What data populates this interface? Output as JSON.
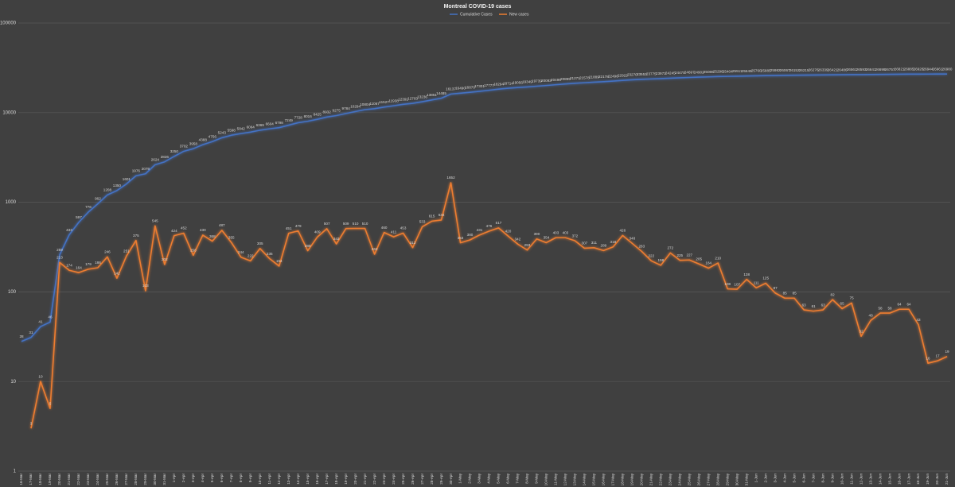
{
  "chart_data": {
    "type": "line",
    "title": "Montreal COVID-19 cases",
    "log_scale": true,
    "grid": true,
    "legend": "top",
    "categories": [
      "16-Mar",
      "17-Mar",
      "18-Mar",
      "19-Mar",
      "20-Mar",
      "21-Mar",
      "22-Mar",
      "23-Mar",
      "24-Mar",
      "25-Mar",
      "26-Mar",
      "27-Mar",
      "28-Mar",
      "29-Mar",
      "30-Mar",
      "31-Mar",
      "1-Apr",
      "2-Apr",
      "3-Apr",
      "4-Apr",
      "5-Apr",
      "6-Apr",
      "7-Apr",
      "8-Apr",
      "9-Apr",
      "10-Apr",
      "11-Apr",
      "12-Apr",
      "13-Apr",
      "14-Apr",
      "15-Apr",
      "16-Apr",
      "17-Apr",
      "18-Apr",
      "19-Apr",
      "20-Apr",
      "21-Apr",
      "22-Apr",
      "23-Apr",
      "24-Apr",
      "25-Apr",
      "26-Apr",
      "27-Apr",
      "28-Apr",
      "29-Apr",
      "30-Apr",
      "1-May",
      "2-May",
      "3-May",
      "4-May",
      "5-May",
      "6-May",
      "7-May",
      "8-May",
      "9-May",
      "10-May",
      "11-May",
      "12-May",
      "13-May",
      "14-May",
      "15-May",
      "16-May",
      "17-May",
      "18-May",
      "19-May",
      "20-May",
      "21-May",
      "22-May",
      "23-May",
      "24-May",
      "25-May",
      "26-May",
      "27-May",
      "28-May",
      "29-May",
      "30-May",
      "31-May",
      "1-Jun",
      "2-Jun",
      "3-Jun",
      "4-Jun",
      "5-Jun",
      "6-Jun",
      "7-Jun",
      "8-Jun",
      "9-Jun",
      "10-Jun",
      "11-Jun",
      "12-Jun",
      "13-Jun",
      "14-Jun",
      "15-Jun",
      "16-Jun",
      "17-Jun",
      "18-Jun",
      "19-Jun",
      "20-Jun",
      "21-Jun"
    ],
    "ylim": [
      1,
      100000
    ],
    "yticks": [
      1,
      10,
      100,
      1000,
      10000,
      100000
    ],
    "series": [
      {
        "name": "Cumulative Cases",
        "color": "#4472c4",
        "values": [
          28,
          31,
          41,
          46,
          259,
          433,
          597,
          776,
          962,
          1208,
          1350,
          1601,
          1976,
          2079,
          2624,
          2826,
          3250,
          3702,
          3958,
          4388,
          4756,
          5243,
          5598,
          5842,
          6064,
          6369,
          6604,
          6798,
          7249,
          7728,
          8016,
          8425,
          8932,
          9275,
          9784,
          10294,
          10804,
          11067,
          11527,
          11938,
          12391,
          12703,
          13236,
          13851,
          14485,
          16137,
          16490,
          16870,
          17301,
          17777,
          18294,
          18714,
          19056,
          19349,
          19739,
          20093,
          20496,
          20899,
          21271,
          21578,
          21889,
          22178,
          22496,
          22922,
          23270,
          23553,
          23775,
          23973,
          24245,
          24470,
          24697,
          24902,
          25086,
          25296,
          25404,
          25511,
          25649,
          25760,
          25885,
          25982,
          26067,
          26152,
          26215,
          26276,
          26339,
          26421,
          26486,
          26561,
          26593,
          26641,
          26699,
          26757,
          26821,
          26885,
          26928,
          26944,
          26961,
          26980
        ]
      },
      {
        "name": "New cases",
        "color": "#ed7d31",
        "values": [
          null,
          3,
          10,
          5,
          213,
          174,
          164,
          179,
          186,
          246,
          142,
          251,
          375,
          103,
          545,
          202,
          424,
          452,
          256,
          430,
          368,
          487,
          355,
          244,
          222,
          305,
          235,
          194,
          451,
          479,
          288,
          409,
          507,
          343,
          509,
          510,
          510,
          263,
          460,
          411,
          453,
          312,
          533,
          615,
          634,
          1652,
          353,
          380,
          431,
          476,
          517,
          420,
          342,
          293,
          390,
          354,
          403,
          403,
          372,
          307,
          311,
          289,
          318,
          426,
          348,
          283,
          222,
          198,
          272,
          225,
          227,
          205,
          184,
          210,
          108,
          107,
          138,
          111,
          125,
          97,
          85,
          85,
          63,
          61,
          63,
          82,
          65,
          75,
          32,
          48,
          58,
          58,
          64,
          64,
          43,
          16,
          17,
          19
        ]
      }
    ]
  }
}
